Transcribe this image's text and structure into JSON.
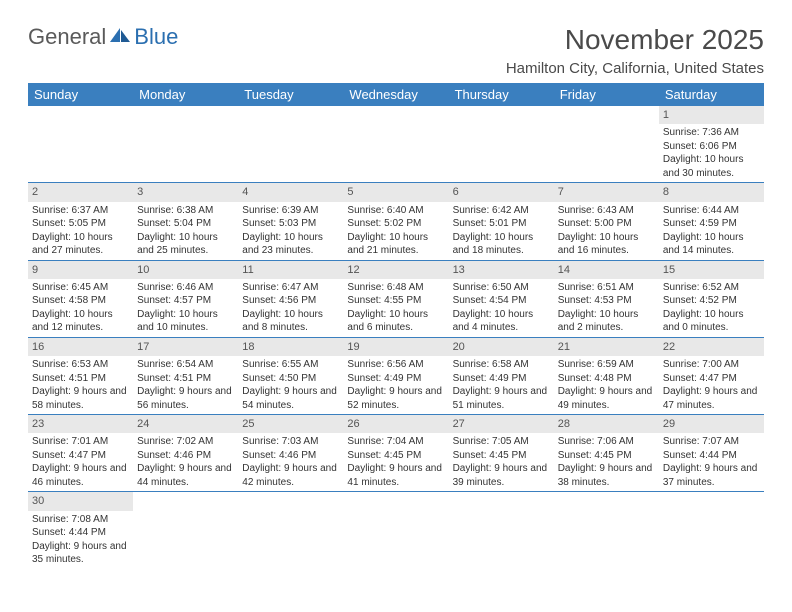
{
  "logo": {
    "part1": "General",
    "part2": "Blue"
  },
  "title": "November 2025",
  "location": "Hamilton City, California, United States",
  "colors": {
    "header_bg": "#3a7fbf",
    "header_text": "#ffffff",
    "daynum_bg": "#e8e8e8",
    "rule": "#3a7fbf",
    "logo_gray": "#5a5a5a",
    "logo_blue": "#2b6fb0"
  },
  "weekdays": [
    "Sunday",
    "Monday",
    "Tuesday",
    "Wednesday",
    "Thursday",
    "Friday",
    "Saturday"
  ],
  "weeks": [
    [
      null,
      null,
      null,
      null,
      null,
      null,
      {
        "n": "1",
        "sr": "7:36 AM",
        "ss": "6:06 PM",
        "dl": "10 hours and 30 minutes."
      }
    ],
    [
      {
        "n": "2",
        "sr": "6:37 AM",
        "ss": "5:05 PM",
        "dl": "10 hours and 27 minutes."
      },
      {
        "n": "3",
        "sr": "6:38 AM",
        "ss": "5:04 PM",
        "dl": "10 hours and 25 minutes."
      },
      {
        "n": "4",
        "sr": "6:39 AM",
        "ss": "5:03 PM",
        "dl": "10 hours and 23 minutes."
      },
      {
        "n": "5",
        "sr": "6:40 AM",
        "ss": "5:02 PM",
        "dl": "10 hours and 21 minutes."
      },
      {
        "n": "6",
        "sr": "6:42 AM",
        "ss": "5:01 PM",
        "dl": "10 hours and 18 minutes."
      },
      {
        "n": "7",
        "sr": "6:43 AM",
        "ss": "5:00 PM",
        "dl": "10 hours and 16 minutes."
      },
      {
        "n": "8",
        "sr": "6:44 AM",
        "ss": "4:59 PM",
        "dl": "10 hours and 14 minutes."
      }
    ],
    [
      {
        "n": "9",
        "sr": "6:45 AM",
        "ss": "4:58 PM",
        "dl": "10 hours and 12 minutes."
      },
      {
        "n": "10",
        "sr": "6:46 AM",
        "ss": "4:57 PM",
        "dl": "10 hours and 10 minutes."
      },
      {
        "n": "11",
        "sr": "6:47 AM",
        "ss": "4:56 PM",
        "dl": "10 hours and 8 minutes."
      },
      {
        "n": "12",
        "sr": "6:48 AM",
        "ss": "4:55 PM",
        "dl": "10 hours and 6 minutes."
      },
      {
        "n": "13",
        "sr": "6:50 AM",
        "ss": "4:54 PM",
        "dl": "10 hours and 4 minutes."
      },
      {
        "n": "14",
        "sr": "6:51 AM",
        "ss": "4:53 PM",
        "dl": "10 hours and 2 minutes."
      },
      {
        "n": "15",
        "sr": "6:52 AM",
        "ss": "4:52 PM",
        "dl": "10 hours and 0 minutes."
      }
    ],
    [
      {
        "n": "16",
        "sr": "6:53 AM",
        "ss": "4:51 PM",
        "dl": "9 hours and 58 minutes."
      },
      {
        "n": "17",
        "sr": "6:54 AM",
        "ss": "4:51 PM",
        "dl": "9 hours and 56 minutes."
      },
      {
        "n": "18",
        "sr": "6:55 AM",
        "ss": "4:50 PM",
        "dl": "9 hours and 54 minutes."
      },
      {
        "n": "19",
        "sr": "6:56 AM",
        "ss": "4:49 PM",
        "dl": "9 hours and 52 minutes."
      },
      {
        "n": "20",
        "sr": "6:58 AM",
        "ss": "4:49 PM",
        "dl": "9 hours and 51 minutes."
      },
      {
        "n": "21",
        "sr": "6:59 AM",
        "ss": "4:48 PM",
        "dl": "9 hours and 49 minutes."
      },
      {
        "n": "22",
        "sr": "7:00 AM",
        "ss": "4:47 PM",
        "dl": "9 hours and 47 minutes."
      }
    ],
    [
      {
        "n": "23",
        "sr": "7:01 AM",
        "ss": "4:47 PM",
        "dl": "9 hours and 46 minutes."
      },
      {
        "n": "24",
        "sr": "7:02 AM",
        "ss": "4:46 PM",
        "dl": "9 hours and 44 minutes."
      },
      {
        "n": "25",
        "sr": "7:03 AM",
        "ss": "4:46 PM",
        "dl": "9 hours and 42 minutes."
      },
      {
        "n": "26",
        "sr": "7:04 AM",
        "ss": "4:45 PM",
        "dl": "9 hours and 41 minutes."
      },
      {
        "n": "27",
        "sr": "7:05 AM",
        "ss": "4:45 PM",
        "dl": "9 hours and 39 minutes."
      },
      {
        "n": "28",
        "sr": "7:06 AM",
        "ss": "4:45 PM",
        "dl": "9 hours and 38 minutes."
      },
      {
        "n": "29",
        "sr": "7:07 AM",
        "ss": "4:44 PM",
        "dl": "9 hours and 37 minutes."
      }
    ],
    [
      {
        "n": "30",
        "sr": "7:08 AM",
        "ss": "4:44 PM",
        "dl": "9 hours and 35 minutes."
      },
      null,
      null,
      null,
      null,
      null,
      null
    ]
  ],
  "labels": {
    "sunrise": "Sunrise:",
    "sunset": "Sunset:",
    "daylight": "Daylight:"
  }
}
